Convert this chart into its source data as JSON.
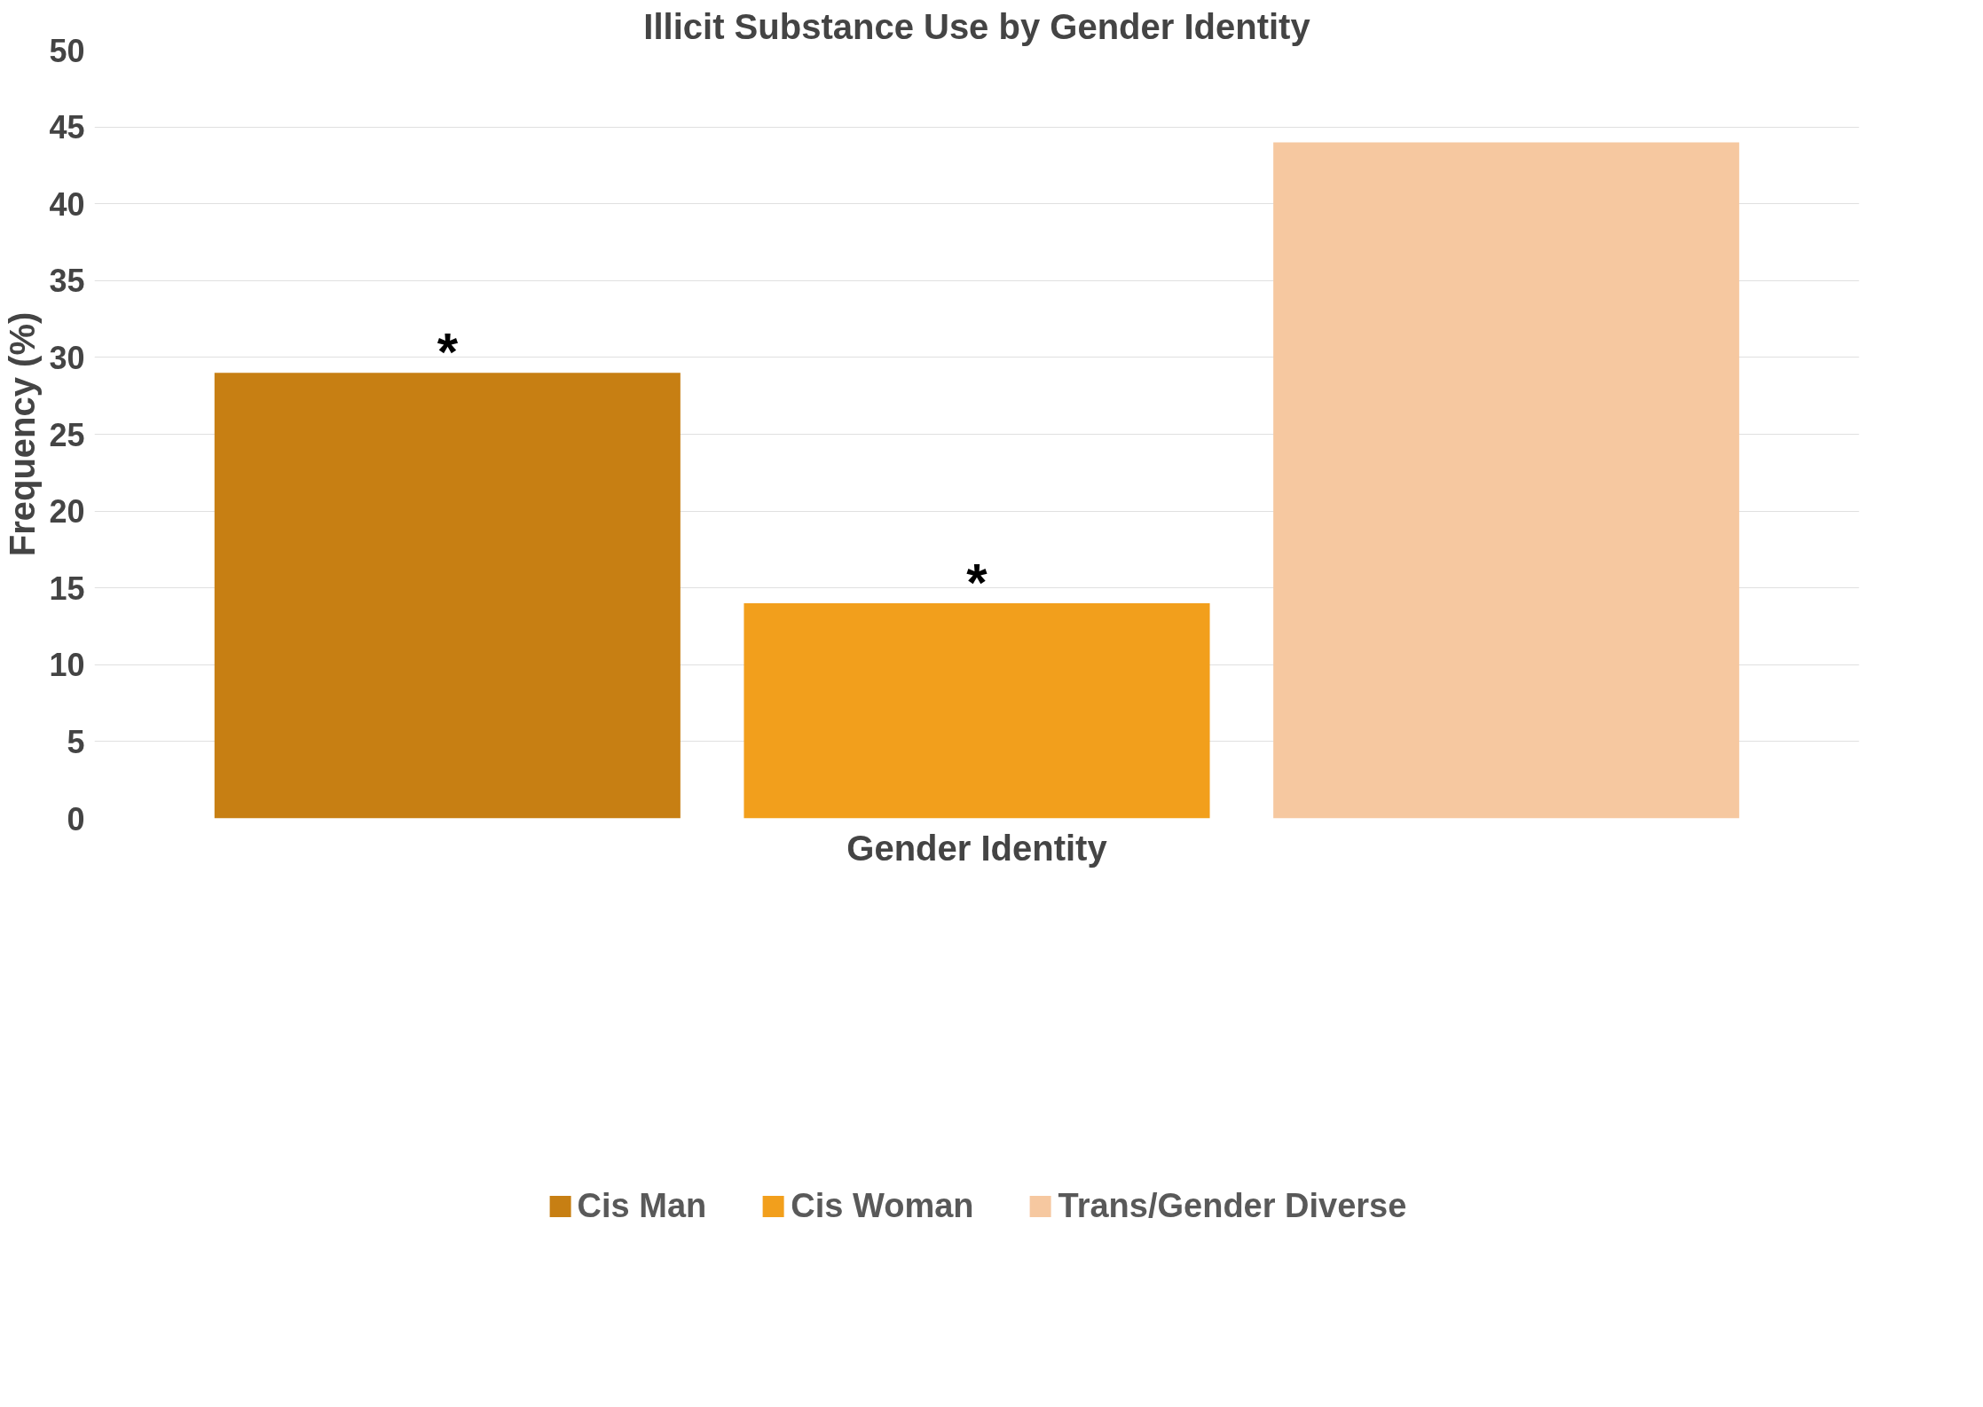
{
  "chart_data": {
    "type": "bar",
    "title": "Illicit Substance Use by Gender Identity",
    "xlabel": "Gender Identity",
    "ylabel": "Frequency (%)",
    "categories": [
      null
    ],
    "series": [
      {
        "name": "Cis Man",
        "color": "#c77f13",
        "values": [
          29
        ]
      },
      {
        "name": "Cis Woman",
        "color": "#f29f1c",
        "values": [
          14
        ]
      },
      {
        "name": "Trans/Gender Diverse",
        "color": "#f6c8a0",
        "values": [
          44
        ]
      }
    ],
    "ylim": [
      0,
      50
    ],
    "yticks": [
      0,
      5,
      10,
      15,
      20,
      25,
      30,
      35,
      40,
      45,
      50
    ],
    "grid": "y",
    "legend": "bottom",
    "tick_labels": "y",
    "annotations": [
      {
        "text": "*",
        "y": 29
      },
      {
        "text": "*",
        "y": 14
      }
    ]
  }
}
